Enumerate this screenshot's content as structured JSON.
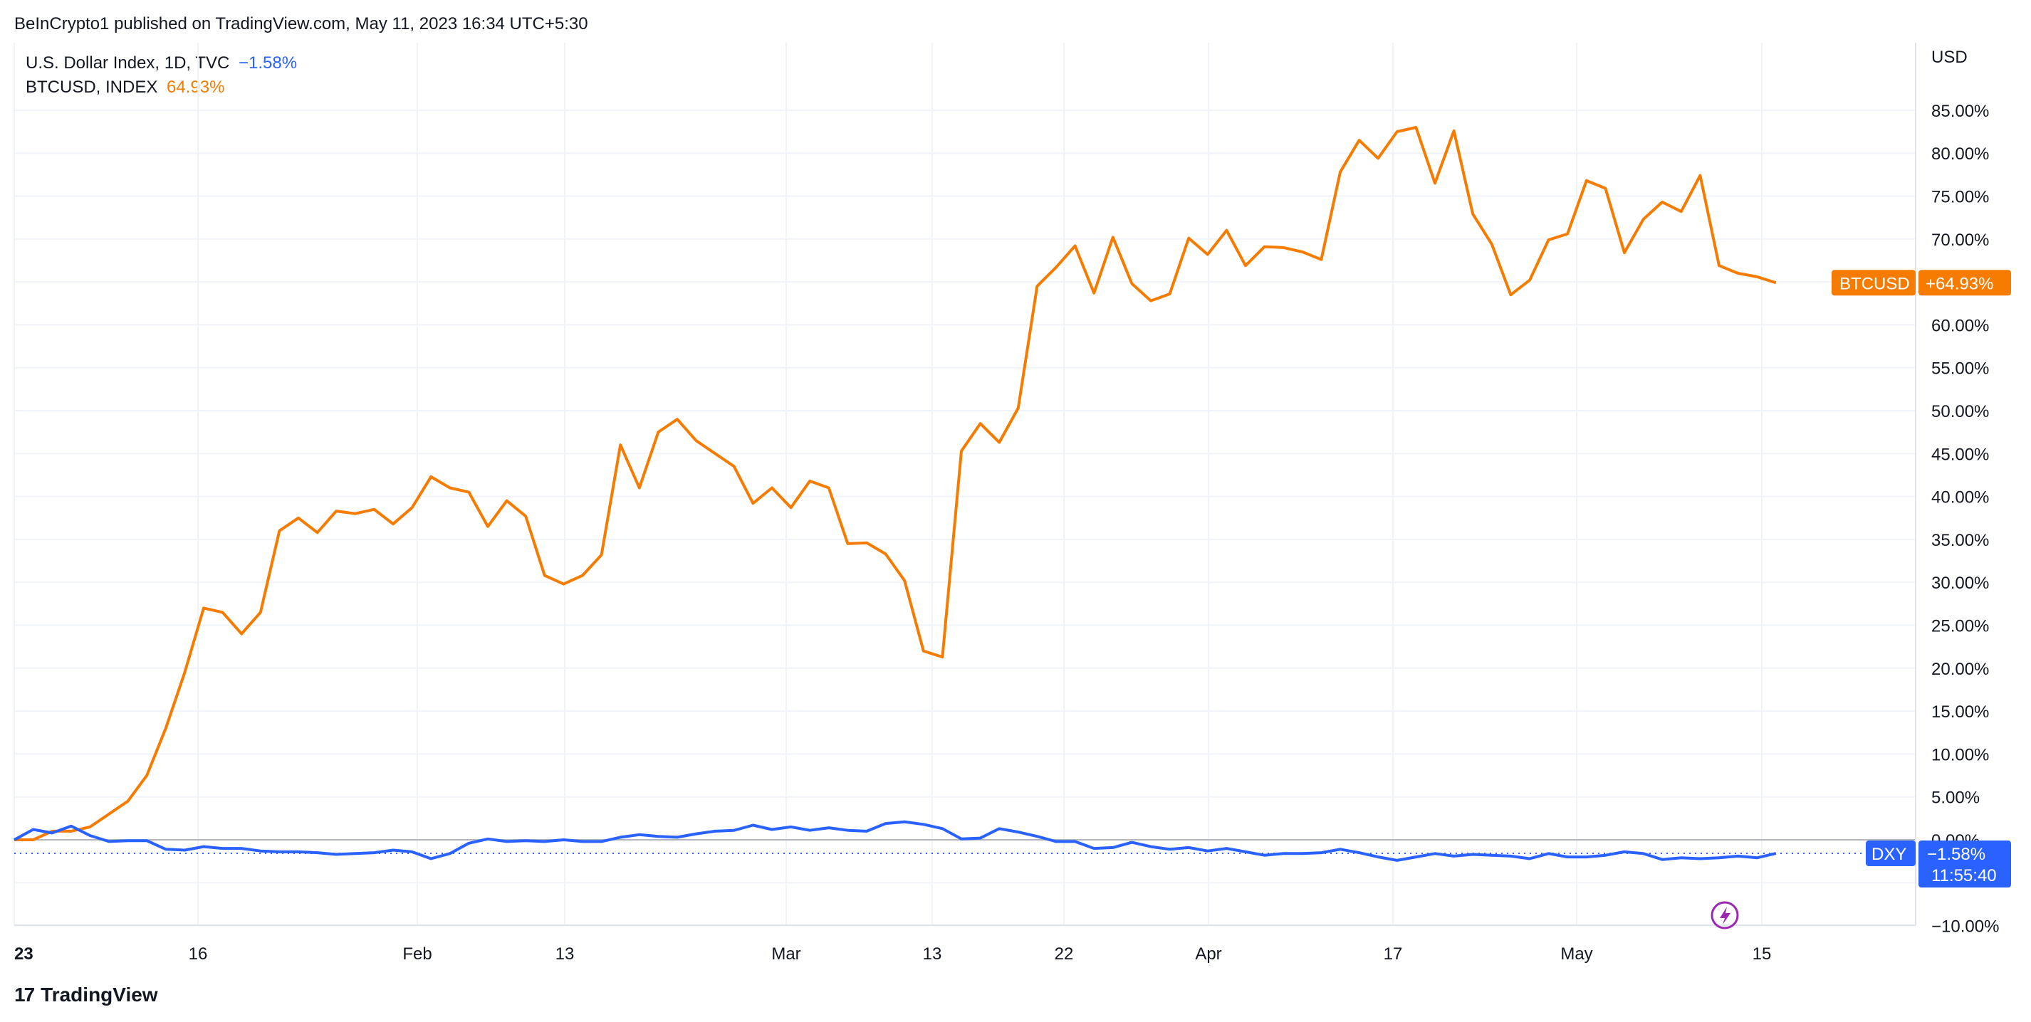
{
  "header": {
    "text": "BeInCrypto1 published on TradingView.com, May 11, 2023 16:34 UTC+5:30"
  },
  "legend": {
    "dxy_label": "U.S. Dollar Index, 1D, TVC",
    "dxy_value": "−1.58%",
    "btc_label": "BTCUSD, INDEX",
    "btc_value": "64.93%"
  },
  "axis": {
    "unit": "USD"
  },
  "badges": {
    "btc_name": "BTCUSD",
    "btc_value": "+64.93%",
    "dxy_name": "DXY",
    "dxy_value": "−1.58%",
    "dxy_countdown": "11:55:40"
  },
  "footer": {
    "brand": "TradingView",
    "logo_glyph": "17"
  },
  "colors": {
    "btc": "#f57c00",
    "dxy": "#2962ff",
    "grid": "#f0f3fa",
    "zero_line": "#b2b5be",
    "flash_icon": "#9c27b0"
  },
  "icons": [
    "tradingview-logo-icon",
    "flash-icon"
  ],
  "chart_data": {
    "type": "line",
    "x_tick_labels": [
      "23",
      "16",
      "Feb",
      "13",
      "Mar",
      "13",
      "22",
      "Apr",
      "17",
      "May",
      "15"
    ],
    "y_tick_labels": [
      "85.00%",
      "80.00%",
      "75.00%",
      "70.00%",
      "65.00%",
      "60.00%",
      "55.00%",
      "50.00%",
      "45.00%",
      "40.00%",
      "35.00%",
      "30.00%",
      "25.00%",
      "20.00%",
      "15.00%",
      "10.00%",
      "5.00%",
      "0.00%",
      "−10.00%"
    ],
    "ylim": [
      -10,
      90
    ],
    "grid": true,
    "legend_position": "top-left",
    "series": [
      {
        "name": "BTCUSD, INDEX",
        "values": [
          0,
          0,
          1,
          1,
          1.5,
          3,
          4.5,
          7.5,
          13,
          19.5,
          27,
          26.5,
          24,
          26.5,
          36,
          37.5,
          35.8,
          38.3,
          38,
          38.5,
          36.8,
          38.7,
          42.3,
          41,
          40.5,
          36.5,
          39.5,
          37.7,
          30.8,
          29.8,
          30.8,
          33.2,
          46,
          41,
          47.5,
          49,
          46.5,
          45,
          43.5,
          39.2,
          41,
          38.7,
          41.8,
          41,
          34.5,
          34.6,
          33.3,
          30.2,
          22,
          21.3,
          45.3,
          48.5,
          46.3,
          50.3,
          64.5,
          66.7,
          69.2,
          63.7,
          70.2,
          64.8,
          62.8,
          63.6,
          70.1,
          68.2,
          71,
          66.9,
          69.1,
          69,
          68.5,
          67.6,
          77.8,
          81.5,
          79.4,
          82.5,
          83,
          76.5,
          82.6,
          72.9,
          69.4,
          63.5,
          65.2,
          69.9,
          70.6,
          76.8,
          75.9,
          68.4,
          72.3,
          74.3,
          73.2,
          77.4,
          66.9,
          66,
          65.6,
          64.9
        ]
      },
      {
        "name": "U.S. Dollar Index, 1D, TVC",
        "values": [
          0,
          1.2,
          0.8,
          1.6,
          0.5,
          -0.2,
          -0.1,
          -0.1,
          -1.1,
          -1.2,
          -0.8,
          -1,
          -1,
          -1.3,
          -1.4,
          -1.4,
          -1.5,
          -1.7,
          -1.6,
          -1.5,
          -1.2,
          -1.4,
          -2.2,
          -1.6,
          -0.4,
          0.1,
          -0.2,
          -0.1,
          -0.2,
          0,
          -0.2,
          -0.2,
          0.3,
          0.6,
          0.4,
          0.3,
          0.7,
          1,
          1.1,
          1.7,
          1.2,
          1.5,
          1.1,
          1.4,
          1.1,
          1,
          1.9,
          2.1,
          1.8,
          1.3,
          0.1,
          0.2,
          1.3,
          0.9,
          0.4,
          -0.2,
          -0.2,
          -1,
          -0.9,
          -0.3,
          -0.8,
          -1.1,
          -0.9,
          -1.3,
          -1,
          -1.4,
          -1.8,
          -1.6,
          -1.6,
          -1.5,
          -1.1,
          -1.5,
          -2,
          -2.4,
          -2,
          -1.6,
          -1.9,
          -1.7,
          -1.8,
          -1.9,
          -2.2,
          -1.6,
          -2,
          -2,
          -1.8,
          -1.4,
          -1.6,
          -2.3,
          -2.1,
          -2.2,
          -2.1,
          -1.9,
          -2.1,
          -1.58
        ]
      }
    ]
  }
}
